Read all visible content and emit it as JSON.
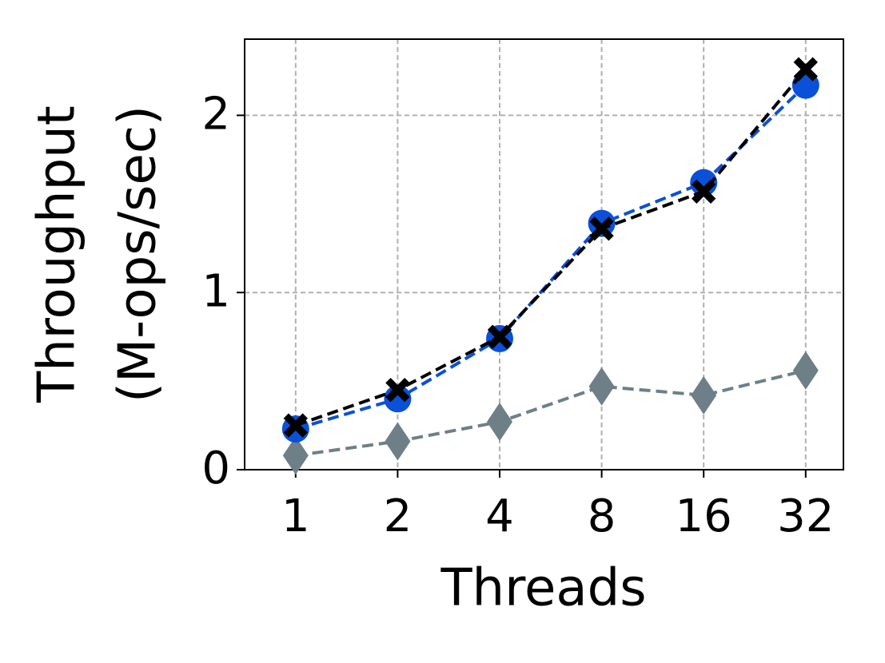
{
  "chart_data": {
    "type": "line",
    "xlabel": "Threads",
    "ylabel": [
      "Throughput",
      "(M-ops/sec)"
    ],
    "categories": [
      "1",
      "2",
      "4",
      "8",
      "16",
      "32"
    ],
    "series": [
      {
        "color": "#6e7f87",
        "marker": "diamond",
        "values": [
          0.08,
          0.16,
          0.27,
          0.47,
          0.42,
          0.56
        ]
      },
      {
        "color": "#0b50d8",
        "marker": "circle",
        "values": [
          0.23,
          0.4,
          0.74,
          1.39,
          1.62,
          2.17
        ]
      },
      {
        "color": "#000000",
        "marker": "x",
        "values": [
          0.25,
          0.45,
          0.75,
          1.36,
          1.57,
          2.26
        ]
      }
    ],
    "ylim": [
      0,
      2.43
    ],
    "yticks": [
      0,
      1,
      2
    ],
    "grid": true
  }
}
